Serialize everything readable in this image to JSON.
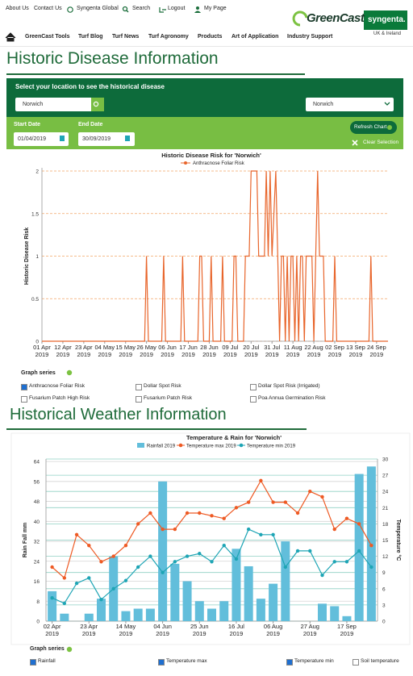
{
  "top_nav": {
    "links": [
      "About Us",
      "Contact Us",
      "Syngenta Global",
      "Search",
      "Logout",
      "My Page"
    ]
  },
  "brand": {
    "greencast": "GreenCast",
    "syngenta": "syngenta.",
    "region": "UK & Ireland"
  },
  "menu": [
    "GreenCast Tools",
    "Turf Blog",
    "Turf News",
    "Turf Agronomy",
    "Products",
    "Art of Application",
    "Industry Support"
  ],
  "disease_section": {
    "heading": "Historic Disease Information",
    "prompt": "Select your location to see the historical disease",
    "search_value": "Norwich",
    "location_select": "Norwich",
    "start_date_label": "Start Date",
    "start_date": "01/04/2019",
    "end_date_label": "End Date",
    "end_date": "30/09/2019",
    "refresh_button": "Refresh Chart",
    "clear_selection": "Clear Selection",
    "graph_series_title": "Graph series",
    "graph_series": [
      {
        "label": "Anthracnose Foliar Risk",
        "checked": true
      },
      {
        "label": "Dollar Spot Risk",
        "checked": false
      },
      {
        "label": "Dollar Spot Risk (Irrigated)",
        "checked": false
      },
      {
        "label": "Fusarium Patch High Risk",
        "checked": false
      },
      {
        "label": "Fusarium Patch Risk",
        "checked": false
      },
      {
        "label": "Poa Annua Germination Risk",
        "checked": false
      }
    ]
  },
  "weather_section": {
    "heading": "Historical Weather Information",
    "graph_series_title": "Graph series",
    "graph_series": [
      {
        "label": "Rainfall",
        "checked": true
      },
      {
        "label": "Temperature max",
        "checked": true
      },
      {
        "label": "Temperature min",
        "checked": true
      },
      {
        "label": "Soil temperature",
        "checked": false
      }
    ]
  },
  "chart_data": [
    {
      "type": "line",
      "title": "Historic Disease Risk for 'Norwich'",
      "y_label": "Historic Disease Risk",
      "x": [
        "2019-04-01",
        "2019-05-25",
        "2019-05-26",
        "2019-05-27",
        "2019-06-03",
        "2019-06-04",
        "2019-06-05",
        "2019-06-13",
        "2019-06-14",
        "2019-06-15",
        "2019-06-22",
        "2019-06-23",
        "2019-06-24",
        "2019-06-25",
        "2019-06-28",
        "2019-06-29",
        "2019-06-30",
        "2019-07-04",
        "2019-07-05",
        "2019-07-06",
        "2019-07-10",
        "2019-07-11",
        "2019-07-12",
        "2019-07-13",
        "2019-07-16",
        "2019-07-17",
        "2019-07-18",
        "2019-07-19",
        "2019-07-20",
        "2019-07-23",
        "2019-07-24",
        "2019-07-27",
        "2019-07-28",
        "2019-07-29",
        "2019-07-30",
        "2019-07-31",
        "2019-08-02",
        "2019-08-03",
        "2019-08-04",
        "2019-08-05",
        "2019-08-06",
        "2019-08-07",
        "2019-08-08",
        "2019-08-09",
        "2019-08-10",
        "2019-08-11",
        "2019-08-12",
        "2019-08-13",
        "2019-08-14",
        "2019-08-15",
        "2019-08-16",
        "2019-08-17",
        "2019-08-18",
        "2019-08-21",
        "2019-08-22",
        "2019-08-23",
        "2019-08-24",
        "2019-08-25",
        "2019-08-27",
        "2019-08-28",
        "2019-09-01",
        "2019-09-02",
        "2019-09-03",
        "2019-09-20",
        "2019-09-21",
        "2019-09-22",
        "2019-09-30"
      ],
      "series": [
        {
          "name": "Anthracnose Foliar Risk",
          "color": "#e8652b",
          "values": [
            0,
            0,
            1,
            0,
            0,
            1,
            0,
            0,
            1,
            0,
            0,
            1,
            1,
            0,
            0,
            1,
            0,
            0,
            1,
            0,
            0,
            1,
            1,
            0,
            0,
            1,
            1,
            1,
            2,
            2,
            1,
            1,
            2,
            1,
            2,
            1,
            2,
            1,
            0,
            1,
            1,
            0,
            1,
            0,
            1,
            1,
            0,
            1,
            0,
            1,
            1,
            0,
            1,
            1,
            0,
            1,
            2,
            1,
            1,
            0,
            0,
            1,
            0,
            0,
            1,
            0,
            0
          ]
        }
      ],
      "xlim": [
        "2019-04-01",
        "2019-09-30"
      ],
      "xticks": [
        {
          "value": "2019-04-01",
          "label": "01 Apr 2019"
        },
        {
          "value": "2019-04-12",
          "label": "12 Apr 2019"
        },
        {
          "value": "2019-04-23",
          "label": "23 Apr 2019"
        },
        {
          "value": "2019-05-04",
          "label": "04 May 2019"
        },
        {
          "value": "2019-05-15",
          "label": "15 May 2019"
        },
        {
          "value": "2019-05-26",
          "label": "26 May 2019"
        },
        {
          "value": "2019-06-06",
          "label": "06 Jun 2019"
        },
        {
          "value": "2019-06-17",
          "label": "17 Jun 2019"
        },
        {
          "value": "2019-06-28",
          "label": "28 Jun 2019"
        },
        {
          "value": "2019-07-09",
          "label": "09 Jul 2019"
        },
        {
          "value": "2019-07-20",
          "label": "20 Jul 2019"
        },
        {
          "value": "2019-07-31",
          "label": "31 Jul 2019"
        },
        {
          "value": "2019-08-11",
          "label": "11 Aug 2019"
        },
        {
          "value": "2019-08-22",
          "label": "22 Aug 2019"
        },
        {
          "value": "2019-09-02",
          "label": "02 Sep 2019"
        },
        {
          "value": "2019-09-13",
          "label": "13 Sep 2019"
        },
        {
          "value": "2019-09-24",
          "label": "24 Sep 2019"
        }
      ],
      "ylim": [
        0,
        2
      ],
      "yticks": [
        0,
        0.5,
        1,
        1.5,
        2
      ],
      "grid": true,
      "grid_color": "#f2a566"
    },
    {
      "type": "combo",
      "title": "Temperature & Rain for 'Norwich'",
      "y_label": "Rain Fall mm",
      "y2_label": "Temperature °C",
      "categories": [
        "02 Apr 2019",
        null,
        null,
        "23 Apr 2019",
        null,
        null,
        "14 May 2019",
        null,
        null,
        "04 Jun 2019",
        null,
        null,
        "25 Jun 2019",
        null,
        null,
        "16 Jul 2019",
        null,
        null,
        "06 Aug 2019",
        null,
        null,
        "27 Aug 2019",
        null,
        null,
        "17 Sep 2019",
        null,
        null
      ],
      "series": [
        {
          "name": "Rainfall 2019",
          "type": "bar",
          "color": "#62bedb",
          "values": [
            12,
            3,
            0,
            3,
            9,
            26,
            4,
            5,
            5,
            56,
            23,
            16,
            8,
            5,
            8,
            29,
            22,
            9,
            15,
            32,
            0,
            0,
            7,
            6,
            2,
            59,
            62
          ]
        },
        {
          "name": "Temperature max 2019",
          "type": "line",
          "axis": "y2",
          "color": "#ee5a24",
          "values": [
            10,
            8,
            16,
            14,
            11,
            12,
            14,
            18,
            20,
            17,
            17,
            20,
            20,
            19.5,
            19,
            21,
            22,
            26,
            22,
            22,
            20,
            24,
            23,
            17,
            19,
            18,
            14
          ]
        },
        {
          "name": "Temperature min 2019",
          "type": "line",
          "axis": "y2",
          "color": "#1ea5b5",
          "values": [
            4.3,
            3.3,
            7,
            8,
            4,
            6,
            7.5,
            10,
            12,
            9,
            11,
            12,
            12.5,
            11,
            14,
            11.5,
            17,
            16,
            16,
            10,
            13,
            13,
            8.5,
            11,
            11,
            13,
            10
          ]
        }
      ],
      "ylim": [
        0,
        65
      ],
      "yticks": [
        0,
        8,
        16,
        24,
        32,
        40,
        48,
        56,
        64
      ],
      "y2lim": [
        0,
        30
      ],
      "y2ticks": [
        0,
        3,
        6,
        9,
        12,
        15,
        18,
        21,
        24,
        27,
        30
      ],
      "grid": true
    }
  ]
}
